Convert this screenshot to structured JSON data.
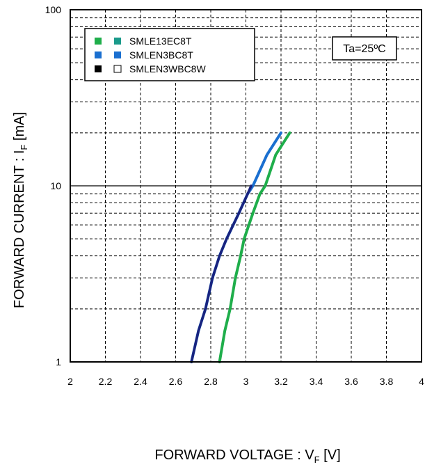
{
  "chart_data": {
    "type": "line",
    "xlabel": "FORWARD VOLTAGE : V",
    "xlabel_sub": "F",
    "xlabel_unit": " [V]",
    "ylabel": "FORWARD CURRENT : I",
    "ylabel_sub": "F",
    "ylabel_unit": " [mA]",
    "xlim": [
      2,
      4
    ],
    "ylim": [
      1,
      100
    ],
    "y_scale": "log",
    "x_ticks": [
      "2",
      "2.2",
      "2.4",
      "2.6",
      "2.8",
      "3",
      "3.2",
      "3.4",
      "3.6",
      "3.8",
      "4"
    ],
    "y_ticks": [
      "1",
      "10",
      "100"
    ],
    "grid": true,
    "legend_position": "top-left",
    "annotation": "Ta=25ºC",
    "legend": [
      {
        "label": "SMLE13EC8T",
        "swatch_colors": [
          "#1fae4b",
          "#1a9a8a"
        ]
      },
      {
        "label": "SMLEN3BC8T",
        "swatch_colors": [
          "#1a6fd0",
          "#1a6fd0"
        ]
      },
      {
        "label": "SMLEN3WBC8W",
        "swatch_colors": [
          "#000000",
          "#ffffff"
        ]
      }
    ],
    "series": [
      {
        "color": "#1fae4b",
        "points": [
          [
            2.85,
            1
          ],
          [
            2.88,
            1.5
          ],
          [
            2.91,
            2
          ],
          [
            2.94,
            3
          ],
          [
            2.97,
            4
          ],
          [
            2.99,
            5
          ],
          [
            3.04,
            7
          ],
          [
            3.08,
            9
          ],
          [
            3.11,
            10
          ],
          [
            3.17,
            15
          ],
          [
            3.25,
            20
          ]
        ]
      },
      {
        "color": "#1a6fd0",
        "points": [
          [
            2.69,
            1
          ],
          [
            2.73,
            1.5
          ],
          [
            2.77,
            2
          ],
          [
            2.81,
            3
          ],
          [
            2.85,
            4
          ],
          [
            2.89,
            5
          ],
          [
            2.96,
            7
          ],
          [
            3.01,
            9
          ],
          [
            3.04,
            10
          ],
          [
            3.12,
            15
          ],
          [
            3.2,
            20
          ]
        ]
      },
      {
        "color": "#1a237e",
        "points": [
          [
            2.69,
            1
          ],
          [
            2.73,
            1.5
          ],
          [
            2.77,
            2
          ],
          [
            2.81,
            3
          ],
          [
            2.85,
            4
          ],
          [
            2.89,
            5
          ],
          [
            2.96,
            7
          ],
          [
            3.01,
            9
          ],
          [
            3.03,
            10
          ]
        ]
      }
    ]
  }
}
